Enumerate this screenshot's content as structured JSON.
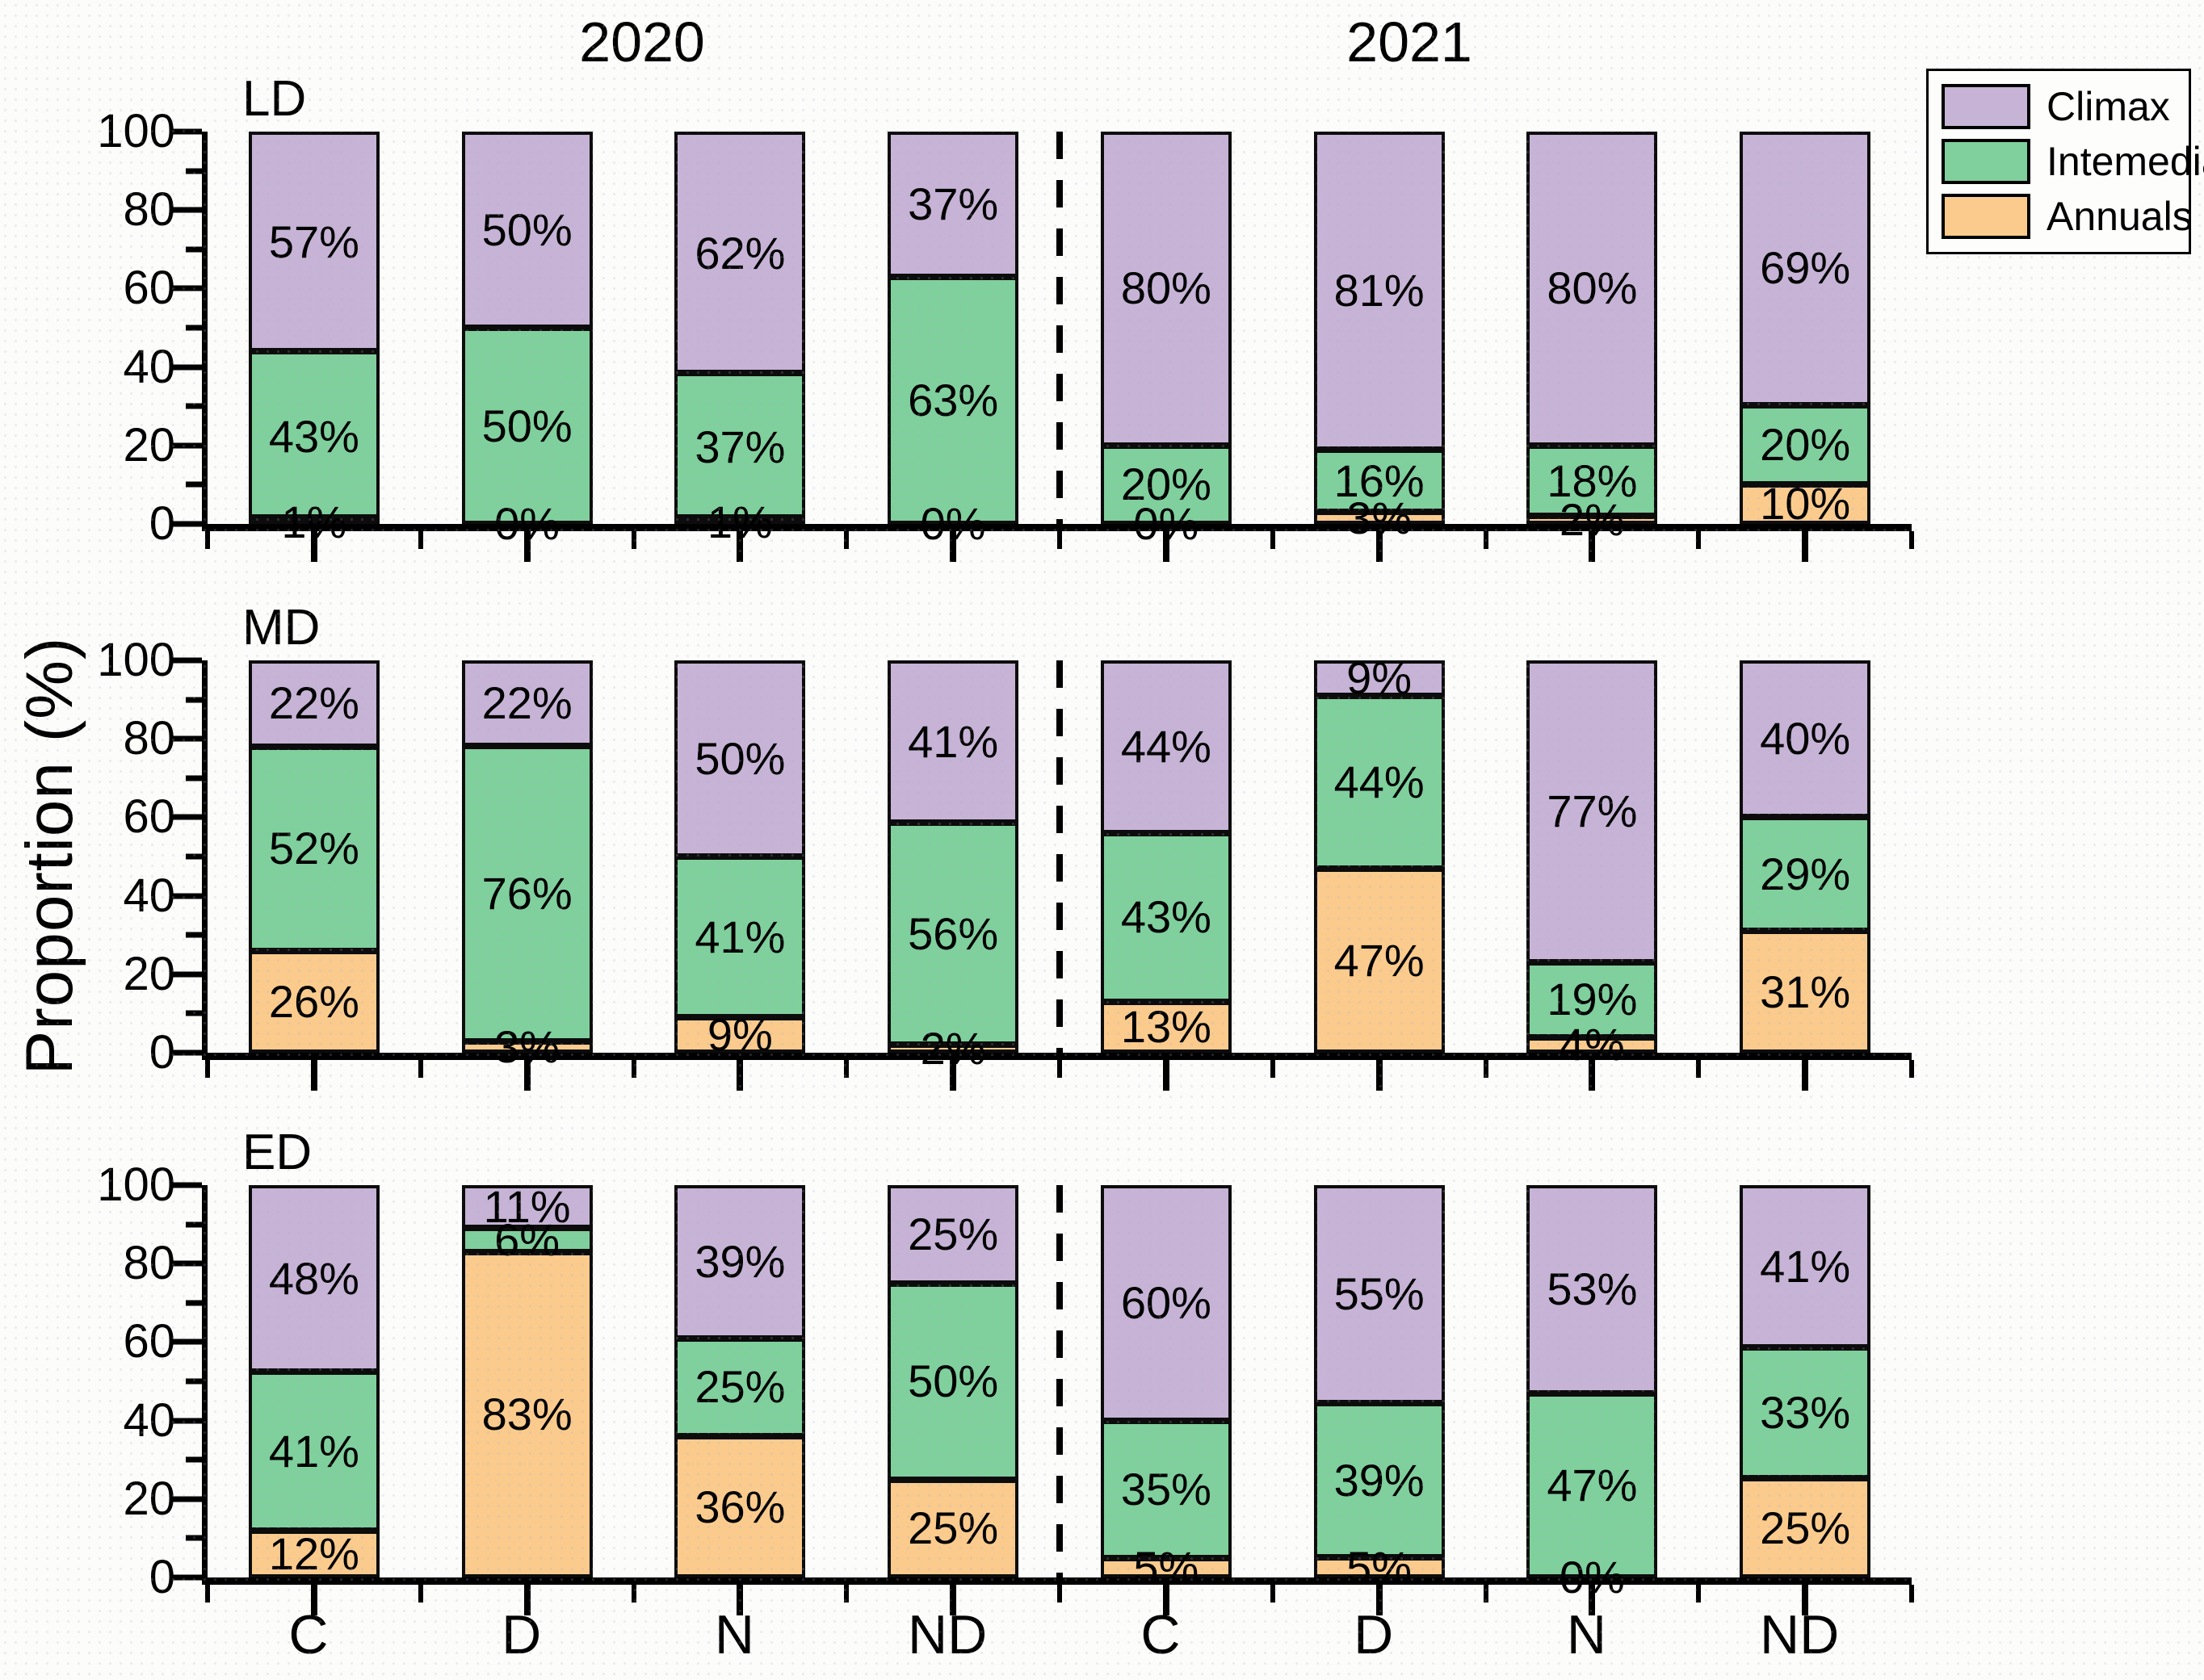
{
  "figure": {
    "group_titles": [
      "2020",
      "2021"
    ],
    "y_axis_label": "Proportion (%)",
    "y_tick_labels": [
      "0",
      "20",
      "40",
      "60",
      "80",
      "100"
    ],
    "x_tick_labels": [
      "C",
      "D",
      "N",
      "ND",
      "C",
      "D",
      "N",
      "ND"
    ],
    "legend": {
      "items": [
        {
          "label": "Climax",
          "color": "#C6B3D6"
        },
        {
          "label": "Intemediate",
          "color": "#7FD09C"
        },
        {
          "label": "Annuals",
          "color": "#FACB8D"
        }
      ]
    },
    "colors": {
      "climax": "#C6B3D6",
      "intermediate": "#7FD09C",
      "annuals": "#FACB8D",
      "axis": "#000000",
      "background": "#FCFCFA"
    }
  },
  "chart_data": [
    {
      "type": "bar",
      "stacked": true,
      "panel": "LD",
      "ylim": [
        0,
        100
      ],
      "grid": false,
      "legend_position": "top-right",
      "categories": [
        "C",
        "D",
        "N",
        "ND",
        "C",
        "D",
        "N",
        "ND"
      ],
      "year_groups": [
        "2020",
        "2020",
        "2020",
        "2020",
        "2021",
        "2021",
        "2021",
        "2021"
      ],
      "series": [
        {
          "name": "Annuals",
          "color": "#FACB8D",
          "values": [
            1,
            0,
            1,
            0,
            0,
            3,
            2,
            10
          ]
        },
        {
          "name": "Intemediate",
          "color": "#7FD09C",
          "values": [
            43,
            50,
            37,
            63,
            20,
            16,
            18,
            20
          ]
        },
        {
          "name": "Climax",
          "color": "#C6B3D6",
          "values": [
            57,
            50,
            62,
            37,
            80,
            81,
            80,
            69
          ]
        }
      ]
    },
    {
      "type": "bar",
      "stacked": true,
      "panel": "MD",
      "ylim": [
        0,
        100
      ],
      "grid": false,
      "categories": [
        "C",
        "D",
        "N",
        "ND",
        "C",
        "D",
        "N",
        "ND"
      ],
      "year_groups": [
        "2020",
        "2020",
        "2020",
        "2020",
        "2021",
        "2021",
        "2021",
        "2021"
      ],
      "series": [
        {
          "name": "Annuals",
          "color": "#FACB8D",
          "values": [
            26,
            3,
            9,
            2,
            13,
            47,
            4,
            31
          ]
        },
        {
          "name": "Intemediate",
          "color": "#7FD09C",
          "values": [
            52,
            76,
            41,
            56,
            43,
            44,
            19,
            29
          ]
        },
        {
          "name": "Climax",
          "color": "#C6B3D6",
          "values": [
            22,
            22,
            50,
            41,
            44,
            9,
            77,
            40
          ]
        }
      ]
    },
    {
      "type": "bar",
      "stacked": true,
      "panel": "ED",
      "ylim": [
        0,
        100
      ],
      "grid": false,
      "categories": [
        "C",
        "D",
        "N",
        "ND",
        "C",
        "D",
        "N",
        "ND"
      ],
      "year_groups": [
        "2020",
        "2020",
        "2020",
        "2020",
        "2021",
        "2021",
        "2021",
        "2021"
      ],
      "series": [
        {
          "name": "Annuals",
          "color": "#FACB8D",
          "values": [
            12,
            83,
            36,
            25,
            5,
            5,
            0,
            25
          ]
        },
        {
          "name": "Intemediate",
          "color": "#7FD09C",
          "values": [
            41,
            6,
            25,
            50,
            35,
            39,
            47,
            33
          ]
        },
        {
          "name": "Climax",
          "color": "#C6B3D6",
          "values": [
            48,
            11,
            39,
            25,
            60,
            55,
            53,
            41
          ]
        }
      ]
    }
  ]
}
